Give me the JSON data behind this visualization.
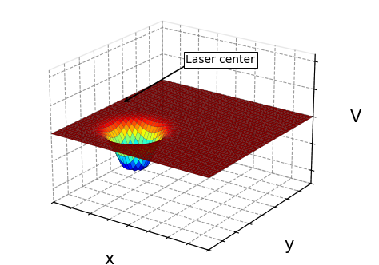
{
  "title": "",
  "xlabel": "x",
  "ylabel": "y",
  "zlabel": "V",
  "x_range": [
    -4,
    4
  ],
  "y_range": [
    -4,
    4
  ],
  "n_points": 50,
  "laser_x": -1.5,
  "laser_y": -1.5,
  "spike_amplitude": 3.0,
  "well_amplitude": -4.5,
  "spike_sigma": 0.25,
  "well_sigma": 0.6,
  "background_color": "#ffffff",
  "annotation_text": "Laser center",
  "annotation_fontsize": 10,
  "axis_label_fontsize": 15,
  "elev": 22,
  "azim": -55
}
